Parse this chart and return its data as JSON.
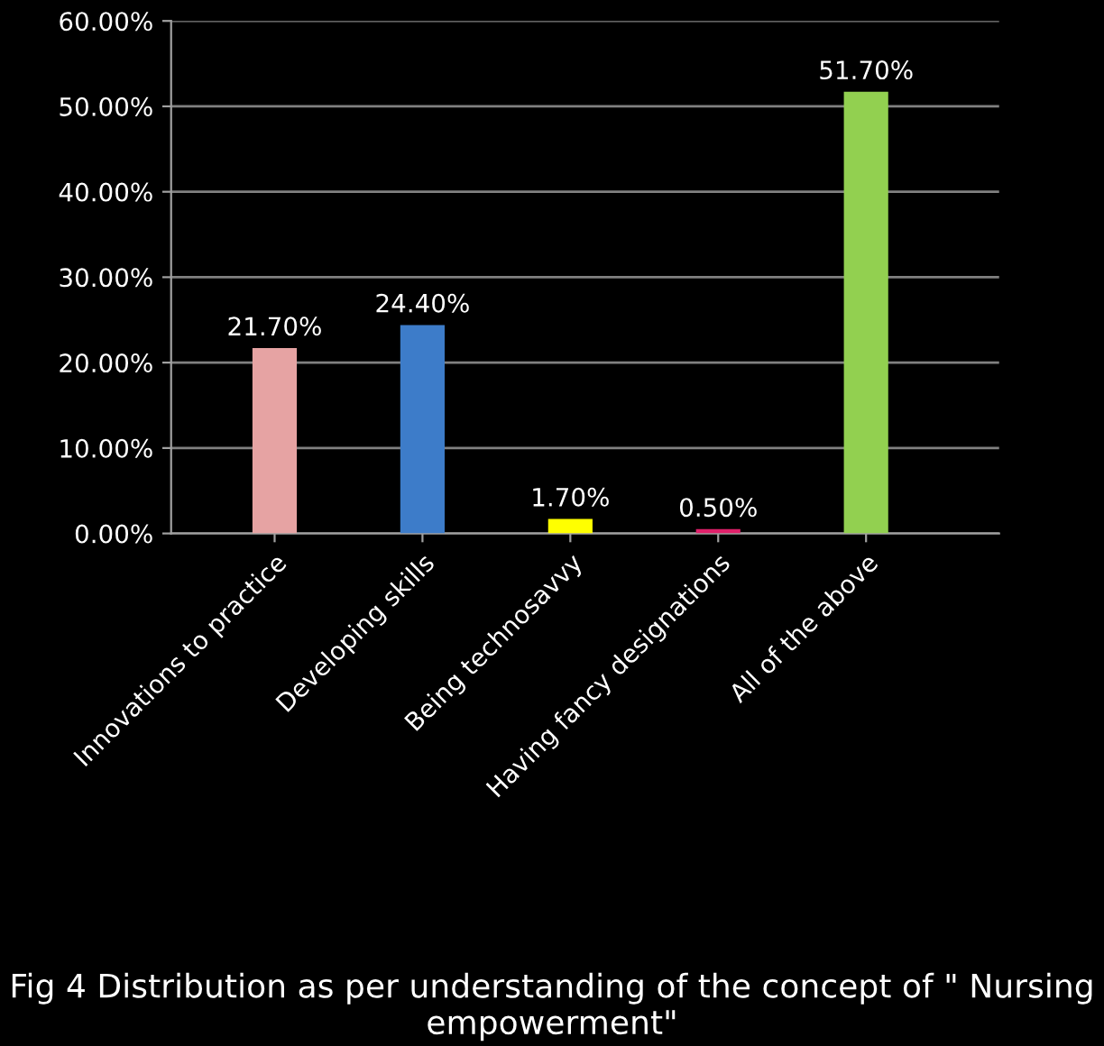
{
  "chart_data": {
    "type": "bar",
    "title": "Fig 4 Distribution as per understanding of the concept of \" Nursing empowerment\"",
    "categories": [
      "Innovations to practice",
      "Developing skills",
      "Being technosavvy",
      "Having fancy designations",
      "All of the above"
    ],
    "values": [
      21.7,
      24.4,
      1.7,
      0.5,
      51.7
    ],
    "colors": [
      "#e6a3a3",
      "#3d7cc9",
      "#ffff00",
      "#e0206a",
      "#92d050"
    ],
    "value_labels": [
      "21.70%",
      "24.40%",
      "1.70%",
      "0.50%",
      "51.70%"
    ],
    "ylim": [
      0,
      60
    ],
    "yticks": [
      {
        "value": 0,
        "label": "0.00%"
      },
      {
        "value": 10,
        "label": "10.00%"
      },
      {
        "value": 20,
        "label": "20.00%"
      },
      {
        "value": 30,
        "label": "30.00%"
      },
      {
        "value": 40,
        "label": "40.00%"
      },
      {
        "value": 50,
        "label": "50.00%"
      },
      {
        "value": 60,
        "label": "60.00%"
      }
    ],
    "grid": "y"
  }
}
